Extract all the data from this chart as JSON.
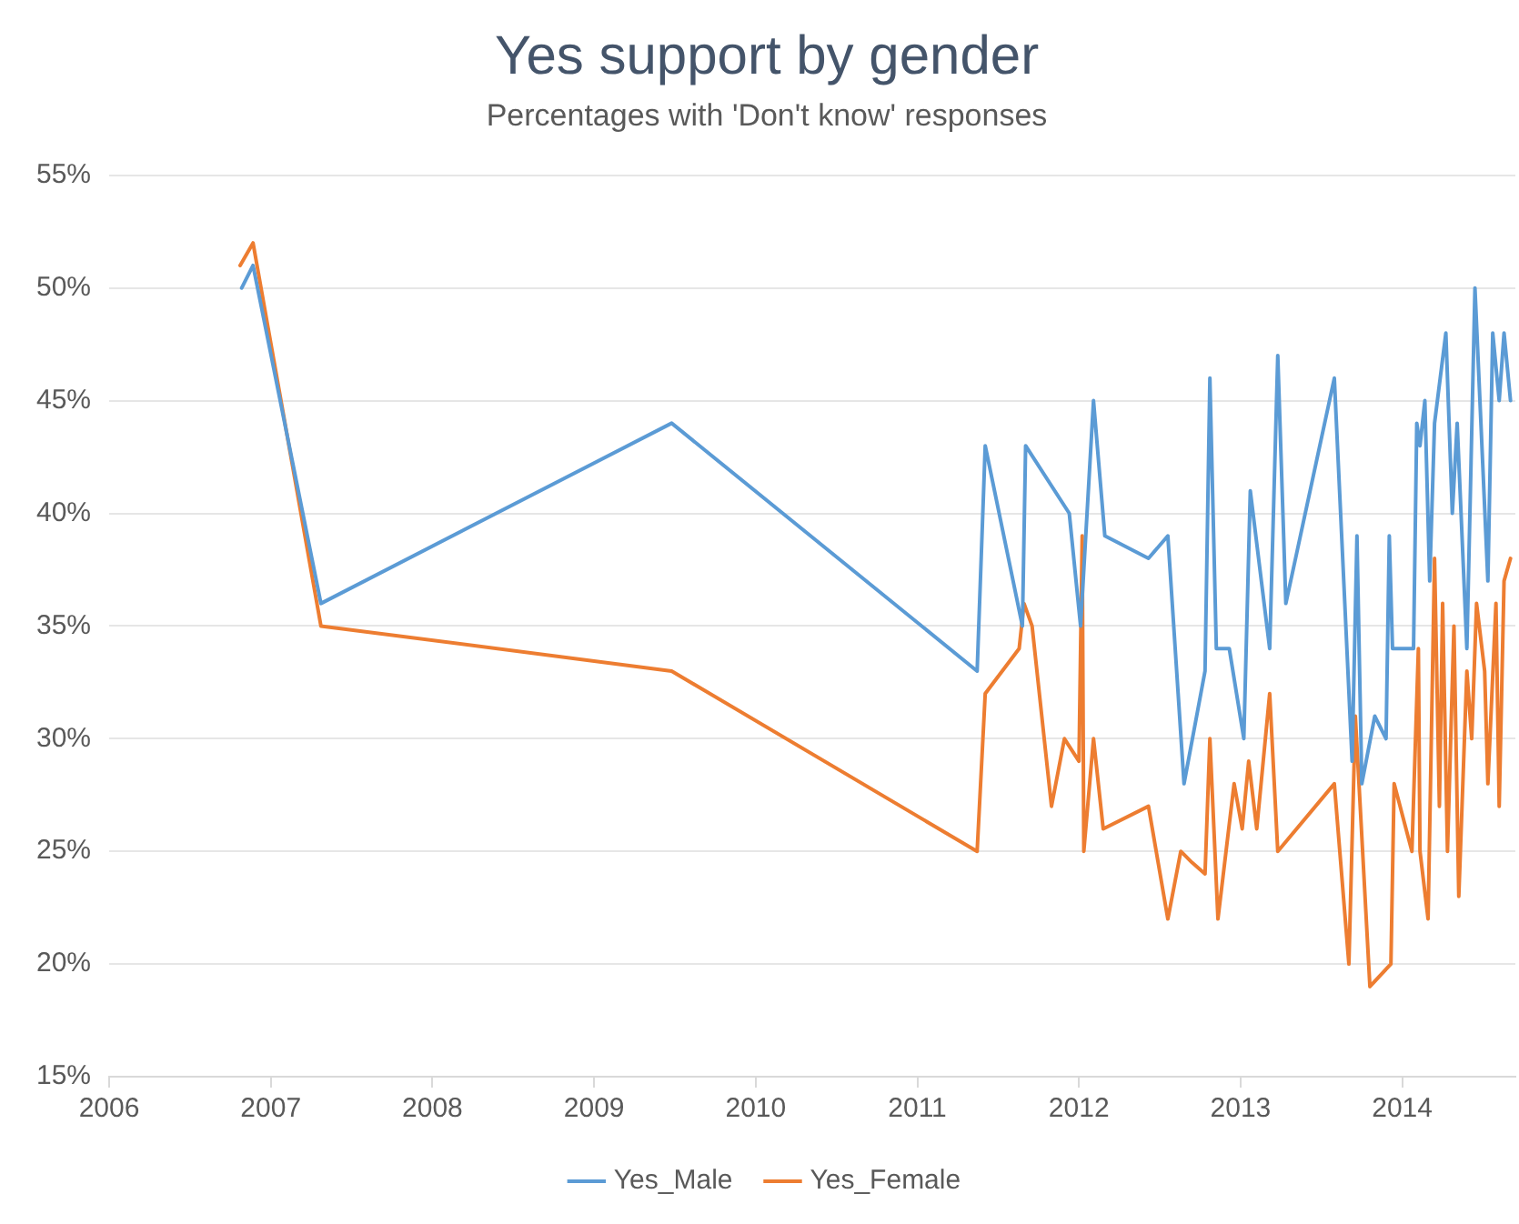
{
  "chart_data": {
    "type": "line",
    "title": "Yes support by gender",
    "subtitle": "Percentages with 'Don't know' responses",
    "xlim": [
      2006,
      2014.7
    ],
    "xticks": [
      2006,
      2007,
      2008,
      2009,
      2010,
      2011,
      2012,
      2013,
      2014
    ],
    "ylim": [
      15,
      55
    ],
    "yticks": [
      {
        "value": 15,
        "label": "15%"
      },
      {
        "value": 20,
        "label": "20%"
      },
      {
        "value": 25,
        "label": "25%"
      },
      {
        "value": 30,
        "label": "30%"
      },
      {
        "value": 35,
        "label": "35%"
      },
      {
        "value": 40,
        "label": "40%"
      },
      {
        "value": 45,
        "label": "45%"
      },
      {
        "value": 50,
        "label": "50%"
      },
      {
        "value": 55,
        "label": "55%"
      }
    ],
    "grid": "y",
    "legend": "bottom",
    "marker": "none",
    "line_style": "solid",
    "series": [
      {
        "name": "Yes_Male",
        "color": "#5b9bd5",
        "x": [
          2006.82,
          2006.89,
          2007.31,
          2009.48,
          2011.37,
          2011.42,
          2011.65,
          2011.67,
          2011.94,
          2012.01,
          2012.09,
          2012.16,
          2012.43,
          2012.55,
          2012.65,
          2012.78,
          2012.81,
          2012.85,
          2012.93,
          2013.02,
          2013.06,
          2013.18,
          2013.23,
          2013.28,
          2013.58,
          2013.69,
          2013.72,
          2013.75,
          2013.83,
          2013.9,
          2013.92,
          2013.94,
          2014.07,
          2014.09,
          2014.11,
          2014.14,
          2014.17,
          2014.2,
          2014.27,
          2014.31,
          2014.34,
          2014.4,
          2014.45,
          2014.53,
          2014.56,
          2014.6,
          2014.63,
          2014.67
        ],
        "values": [
          50,
          51,
          36,
          44,
          33,
          43,
          35,
          43,
          40,
          35,
          45,
          39,
          38,
          39,
          28,
          33,
          46,
          34,
          34,
          30,
          41,
          34,
          47,
          36,
          46,
          29,
          39,
          28,
          31,
          30,
          39,
          34,
          34,
          44,
          43,
          45,
          37,
          44,
          48,
          40,
          44,
          34,
          50,
          37,
          48,
          45,
          48,
          45
        ]
      },
      {
        "name": "Yes_Female",
        "color": "#ed7d31",
        "x": [
          2006.81,
          2006.89,
          2007.31,
          2009.48,
          2011.37,
          2011.42,
          2011.63,
          2011.66,
          2011.71,
          2011.83,
          2011.91,
          2012.0,
          2012.02,
          2012.03,
          2012.09,
          2012.15,
          2012.43,
          2012.55,
          2012.63,
          2012.7,
          2012.78,
          2012.81,
          2012.86,
          2012.96,
          2013.01,
          2013.05,
          2013.1,
          2013.18,
          2013.23,
          2013.58,
          2013.67,
          2013.71,
          2013.8,
          2013.93,
          2013.95,
          2014.06,
          2014.1,
          2014.11,
          2014.16,
          2014.2,
          2014.23,
          2014.25,
          2014.28,
          2014.32,
          2014.35,
          2014.4,
          2014.43,
          2014.46,
          2014.51,
          2014.53,
          2014.58,
          2014.6,
          2014.63,
          2014.67
        ],
        "values": [
          51,
          52,
          35,
          33,
          25,
          32,
          34,
          36,
          35,
          27,
          30,
          29,
          39,
          25,
          30,
          26,
          27,
          22,
          25,
          24.5,
          24,
          30,
          22,
          28,
          26,
          29,
          26,
          32,
          25,
          28,
          20,
          31,
          19,
          20,
          28,
          25,
          34,
          25,
          22,
          38,
          27,
          36,
          25,
          35,
          23,
          33,
          30,
          36,
          33,
          28,
          36,
          27,
          37,
          38
        ]
      }
    ]
  }
}
